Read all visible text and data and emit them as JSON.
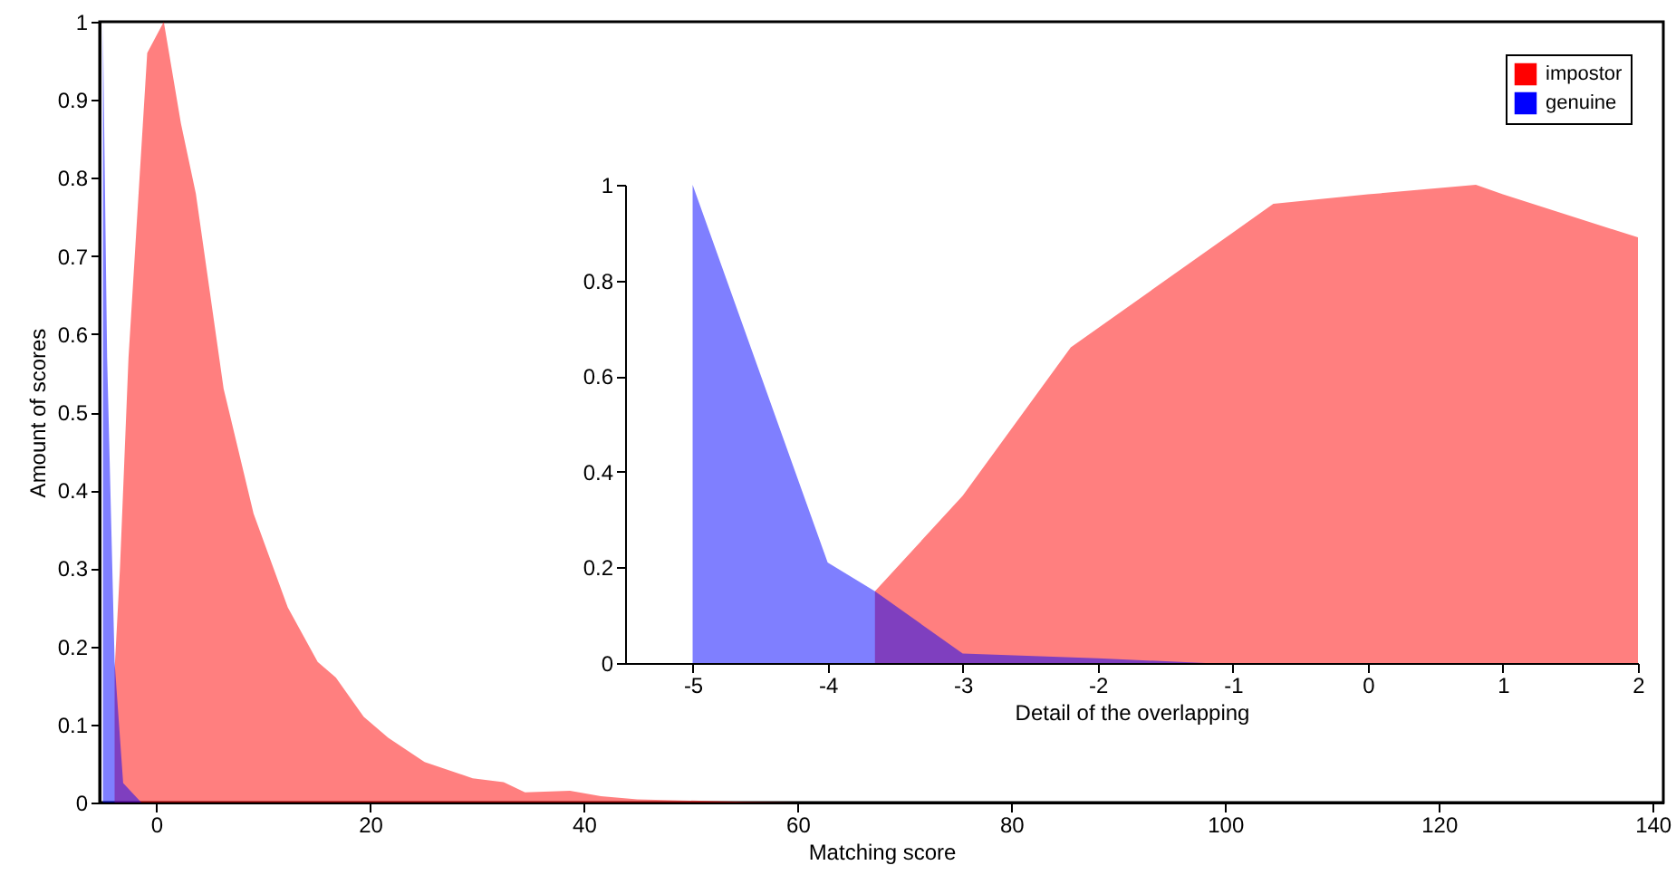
{
  "chart_data": [
    {
      "type": "area",
      "xlabel": "Matching score",
      "ylabel": "Amount of scores",
      "xlim": [
        -5.3,
        141
      ],
      "ylim": [
        0,
        1
      ],
      "xticks": [
        0,
        20,
        40,
        60,
        80,
        100,
        120,
        140
      ],
      "yticks": [
        0,
        0.1,
        0.2,
        0.3,
        0.4,
        0.5,
        0.6,
        0.7,
        0.8,
        0.9,
        1
      ],
      "grid": false,
      "legend": "top right",
      "series": [
        {
          "name": "impostor",
          "color": "#ff0000",
          "x": [
            -3.9,
            -3.4,
            -2.6,
            -0.85,
            0.7,
            2.3,
            3.7,
            6.3,
            9.1,
            12.3,
            15.1,
            16.8,
            19.4,
            21.7,
            25.1,
            29.6,
            32.5,
            34.5,
            38.7,
            41.6,
            45,
            55,
            60,
            140
          ],
          "values": [
            0.17,
            0.3,
            0.57,
            0.96,
            1.0,
            0.87,
            0.78,
            0.53,
            0.37,
            0.25,
            0.18,
            0.16,
            0.11,
            0.083,
            0.052,
            0.031,
            0.026,
            0.013,
            0.015,
            0.008,
            0.004,
            0.001,
            0,
            0
          ]
        },
        {
          "name": "genuine",
          "color": "#0000ff",
          "x": [
            -5,
            -4.6,
            -3.9,
            -3.1,
            -1.4,
            140
          ],
          "values": [
            1,
            0.57,
            0.18,
            0.025,
            0,
            0
          ]
        }
      ]
    },
    {
      "type": "area",
      "xlabel": "Detail of the overlapping",
      "xlim": [
        -5.5,
        2
      ],
      "ylim": [
        0,
        1
      ],
      "xticks": [
        -5,
        -4,
        -3,
        -2,
        -1,
        0,
        1,
        2
      ],
      "yticks": [
        0,
        0.2,
        0.4,
        0.6,
        0.8,
        1
      ],
      "grid": false,
      "series": [
        {
          "color": "#ff0000",
          "x": [
            -3.65,
            -3,
            -2.2,
            -1.5,
            -0.7,
            0,
            0.8,
            1,
            2
          ],
          "values": [
            0.15,
            0.35,
            0.66,
            0.8,
            0.96,
            0.98,
            1,
            0.98,
            0.89
          ]
        },
        {
          "color": "#0000ff",
          "x": [
            -5,
            -4,
            -3.65,
            -3,
            -2,
            -1.2,
            0,
            2
          ],
          "values": [
            1,
            0.21,
            0.15,
            0.02,
            0.01,
            0,
            0,
            0
          ]
        }
      ]
    }
  ]
}
